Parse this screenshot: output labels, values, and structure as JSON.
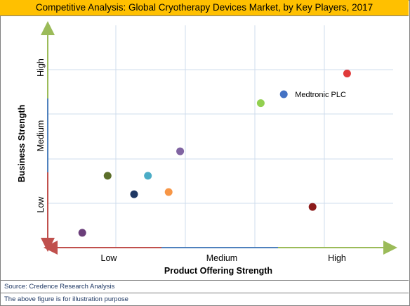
{
  "chart_data": {
    "type": "scatter",
    "title": "Competitive Analysis: Global Cryotherapy Devices Market, by Key Players, 2017",
    "xlabel": "Product Offering Strength",
    "ylabel": "Business Strength",
    "x_tick_labels": [
      "Low",
      "Medium",
      "High"
    ],
    "y_tick_labels": [
      "Low",
      "Medium",
      "High"
    ],
    "xlim": [
      0,
      3
    ],
    "ylim": [
      0,
      3
    ],
    "grid": true,
    "points": [
      {
        "label": "",
        "x": 0.3,
        "y": 0.2,
        "color": "#6b3e7a"
      },
      {
        "label": "",
        "x": 0.52,
        "y": 0.97,
        "color": "#5b6e2a"
      },
      {
        "label": "",
        "x": 0.75,
        "y": 0.72,
        "color": "#1f3864"
      },
      {
        "label": "",
        "x": 0.87,
        "y": 0.97,
        "color": "#4bacc6"
      },
      {
        "label": "",
        "x": 1.05,
        "y": 0.75,
        "color": "#f79646"
      },
      {
        "label": "",
        "x": 1.15,
        "y": 1.3,
        "color": "#8064a2"
      },
      {
        "label": "",
        "x": 1.85,
        "y": 1.95,
        "color": "#92d050"
      },
      {
        "label": "Medtronic PLC",
        "x": 2.05,
        "y": 2.07,
        "color": "#4472c4"
      },
      {
        "label": "",
        "x": 2.3,
        "y": 0.55,
        "color": "#8b1a1a"
      },
      {
        "label": "",
        "x": 2.6,
        "y": 2.35,
        "color": "#e03a3a"
      }
    ]
  },
  "footer": {
    "source": "Source: Credence Research Analysis",
    "note": "The above figure is for illustration purpose"
  }
}
